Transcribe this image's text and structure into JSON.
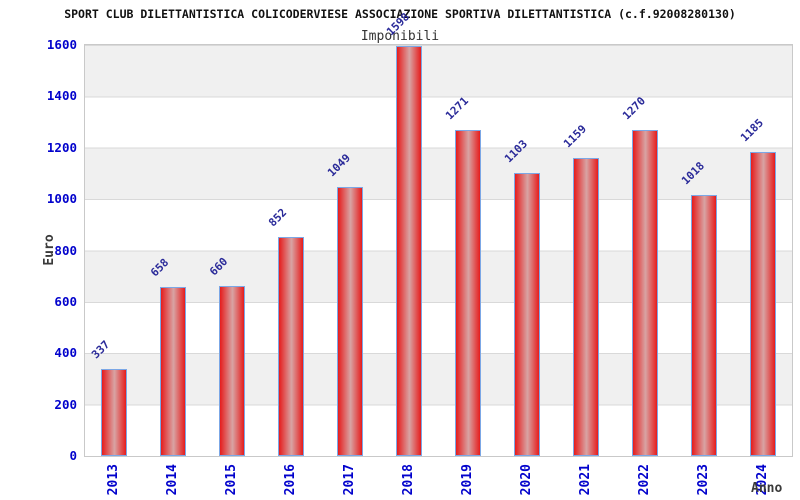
{
  "chart_data": {
    "type": "bar",
    "title": "SPORT CLUB DILETTANTISTICA COLICODERVIESE ASSOCIAZIONE SPORTIVA DILETTANTISTICA (c.f.92008280130)",
    "subtitle": "Imponibili",
    "xlabel": "Anno",
    "ylabel": "Euro",
    "categories": [
      "2013",
      "2014",
      "2015",
      "2016",
      "2017",
      "2018",
      "2019",
      "2020",
      "2021",
      "2022",
      "2023",
      "2024"
    ],
    "values": [
      337,
      658,
      660,
      852,
      1049,
      1598,
      1271,
      1103,
      1159,
      1270,
      1018,
      1185
    ],
    "ylim": [
      0,
      1600
    ],
    "yticks": [
      0,
      200,
      400,
      600,
      800,
      1000,
      1200,
      1400,
      1600
    ],
    "grid": true,
    "legend": false,
    "bands": "alternating horizontal 200-unit bands",
    "colors": {
      "bar_fill": "#e61c1c",
      "bar_fill_mid": "#d8a4a4",
      "bar_border": "#7ba7e6",
      "tick_label": "#0202cc",
      "value_label": "#2a2a99",
      "axis_title": "#3a3a3a",
      "band_gray": "#f0f0f0",
      "grid_line": "#d9d9d9",
      "plot_border": "#c9c9c9",
      "title_color": "#111111",
      "subtitle_color": "#333333"
    }
  }
}
